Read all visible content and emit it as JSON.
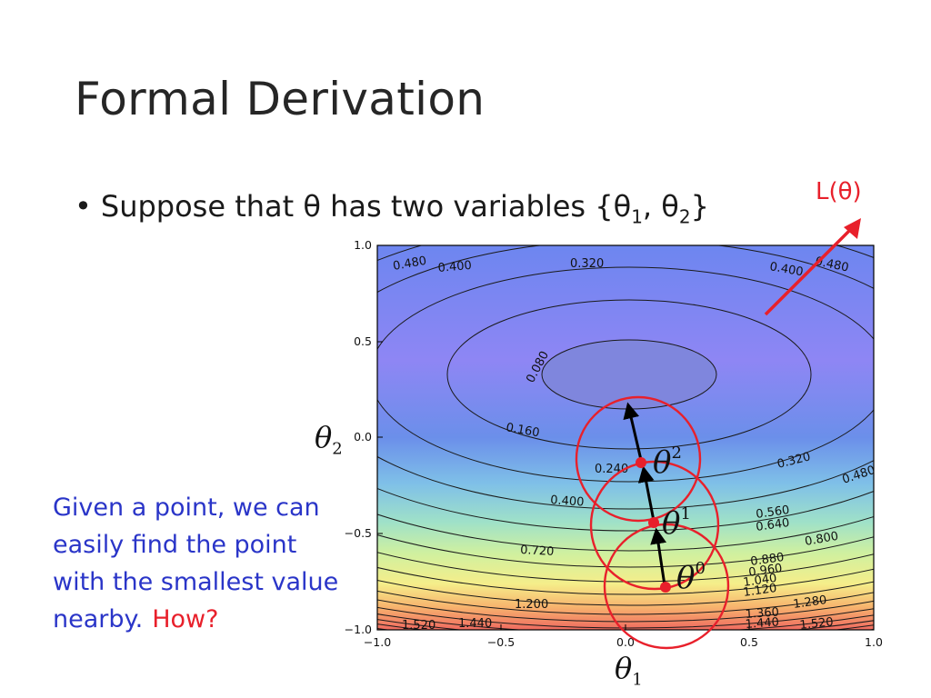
{
  "title": "Formal Derivation",
  "bullet": {
    "prefix": "Suppose that θ has two variables {θ",
    "sub1": "1",
    "middle": ", θ",
    "sub2": "2",
    "suffix": "}"
  },
  "loss_label": "L(θ)",
  "side_note": {
    "text": "Given a point, we can easily find the point with the smallest value nearby.",
    "how": "How?"
  },
  "axes": {
    "x_symbol": "θ",
    "x_sub": "1",
    "y_symbol": "θ",
    "y_sub": "2",
    "x_ticks": [
      "−1.0",
      "−0.5",
      "0.0",
      "0.5",
      "1.0"
    ],
    "y_ticks": [
      "1.0",
      "0.5",
      "0.0",
      "−0.5",
      "−1.0"
    ]
  },
  "contour_labels": [
    "0.480",
    "0.400",
    "0.320",
    "0.400",
    "0.480",
    "0.080",
    "0.160",
    "0.240",
    "0.320",
    "0.480",
    "0.400",
    "0.560",
    "0.640",
    "0.720",
    "0.800",
    "0.880",
    "0.960",
    "1.040",
    "1.120",
    "1.200",
    "1.280",
    "1.360",
    "1.440",
    "1.440",
    "1.520",
    "1.520"
  ],
  "points": [
    {
      "symbol": "θ",
      "sup": "0"
    },
    {
      "symbol": "θ",
      "sup": "1"
    },
    {
      "symbol": "θ",
      "sup": "2"
    }
  ],
  "colors": {
    "accent_red": "#e8202b",
    "note_blue": "#2a35c8"
  }
}
